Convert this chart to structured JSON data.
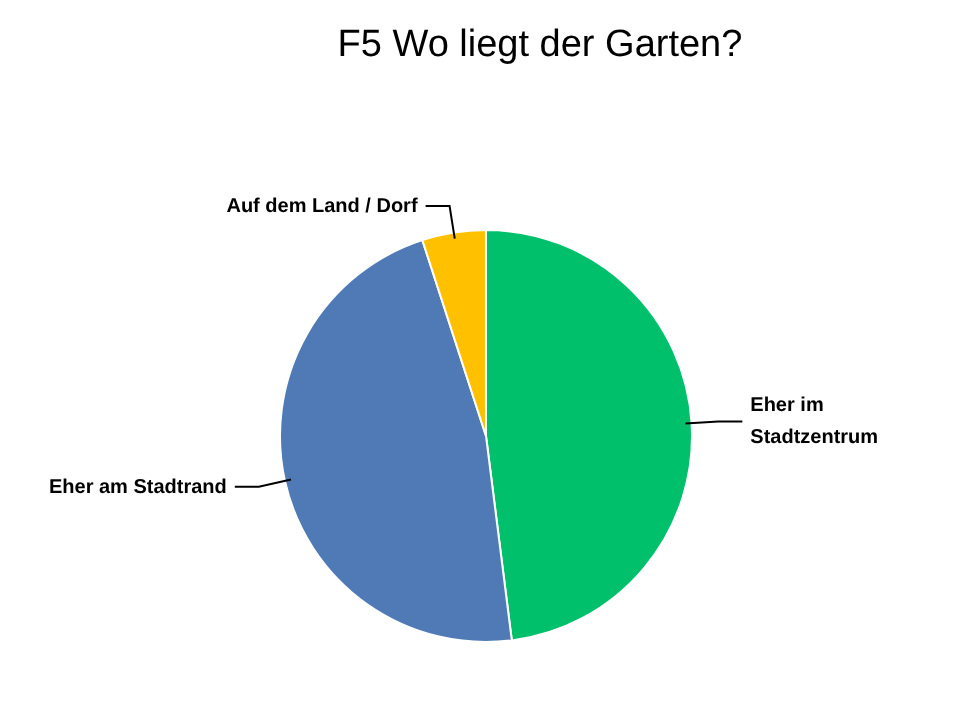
{
  "chart_data": {
    "type": "pie",
    "title": "F5 Wo liegt der Garten?",
    "categories": [
      "Eher im Stadtzentrum",
      "Eher am Stadtrand",
      "Auf dem Land / Dorf"
    ],
    "values": [
      48,
      47,
      5
    ],
    "colors": [
      "#00c06b",
      "#4f7ab5",
      "#ffc000"
    ]
  }
}
